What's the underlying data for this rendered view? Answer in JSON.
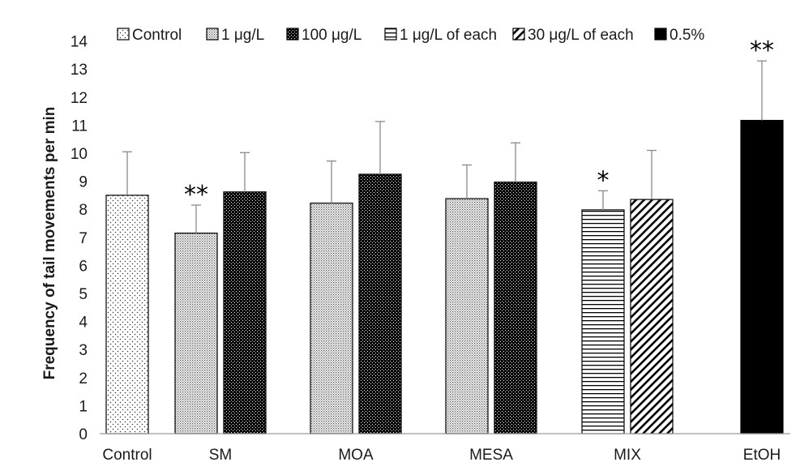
{
  "chart_data": {
    "type": "bar",
    "title": "",
    "xlabel": "",
    "ylabel": "Frequency of tail movements per min",
    "ylim": [
      0,
      14
    ],
    "yticks": [
      0,
      1,
      2,
      3,
      4,
      5,
      6,
      7,
      8,
      9,
      10,
      11,
      12,
      13,
      14
    ],
    "grid": false,
    "legend_position": "top",
    "categories": [
      "Control",
      "SM",
      "MOA",
      "MESA",
      "MIX",
      "EtOH"
    ],
    "legend": [
      {
        "label": "Control",
        "pattern": "sparse-dots"
      },
      {
        "label": "1 μg/L",
        "pattern": "dense-dots"
      },
      {
        "label": "100 μg/L",
        "pattern": "dark-dots"
      },
      {
        "label": "1 μg/L of each",
        "pattern": "horizontal-lines"
      },
      {
        "label": "30 μg/L of each",
        "pattern": "diagonal-lines"
      },
      {
        "label": "0.5%",
        "pattern": "solid-black"
      }
    ],
    "bars": [
      {
        "category": "Control",
        "group": "Control",
        "value": 8.5,
        "error": 1.55,
        "pattern": "sparse-dots",
        "annotation": ""
      },
      {
        "category": "SM",
        "group": "1 μg/L",
        "value": 7.15,
        "error": 1.0,
        "pattern": "dense-dots",
        "annotation": "**"
      },
      {
        "category": "SM",
        "group": "100 μg/L",
        "value": 8.62,
        "error": 1.4,
        "pattern": "dark-dots",
        "annotation": ""
      },
      {
        "category": "MOA",
        "group": "1 μg/L",
        "value": 8.22,
        "error": 1.5,
        "pattern": "dense-dots",
        "annotation": ""
      },
      {
        "category": "MOA",
        "group": "100 μg/L",
        "value": 9.25,
        "error": 1.88,
        "pattern": "dark-dots",
        "annotation": ""
      },
      {
        "category": "MESA",
        "group": "1 μg/L",
        "value": 8.38,
        "error": 1.2,
        "pattern": "dense-dots",
        "annotation": ""
      },
      {
        "category": "MESA",
        "group": "100 μg/L",
        "value": 8.97,
        "error": 1.4,
        "pattern": "dark-dots",
        "annotation": ""
      },
      {
        "category": "MIX",
        "group": "1 μg/L of each",
        "value": 7.98,
        "error": 0.68,
        "pattern": "horizontal-lines",
        "annotation": "*"
      },
      {
        "category": "MIX",
        "group": "30 μg/L of each",
        "value": 8.35,
        "error": 1.75,
        "pattern": "diagonal-lines",
        "annotation": ""
      },
      {
        "category": "EtOH",
        "group": "0.5%",
        "value": 11.17,
        "error": 2.12,
        "pattern": "solid-black",
        "annotation": "**"
      }
    ]
  }
}
